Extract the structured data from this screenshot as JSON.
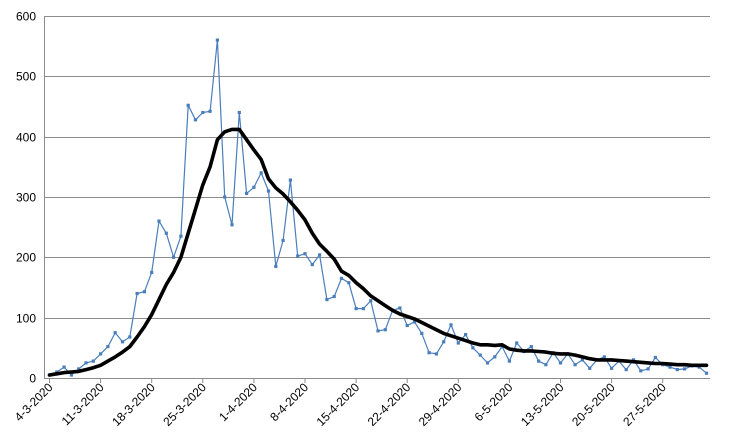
{
  "chart_data": {
    "type": "line",
    "title": "",
    "xlabel": "",
    "ylabel": "",
    "ylim": [
      0,
      600
    ],
    "yticks": [
      0,
      100,
      200,
      300,
      400,
      500,
      600
    ],
    "grid": true,
    "legend": "none",
    "x_tick_labels": [
      "4-3-2020",
      "11-3-2020",
      "18-3-2020",
      "25-3-2020",
      "1-4-2020",
      "8-4-2020",
      "15-4-2020",
      "22-4-2020",
      "29-4-2020",
      "6-5-2020",
      "13-5-2020",
      "20-5-2020",
      "27-5-2020"
    ],
    "colors": {
      "daily": "#4a7ebb",
      "average": "#000000",
      "grid": "#8c8c8c"
    },
    "series": [
      {
        "style": "thin blue line with point markers",
        "values": [
          5,
          10,
          18,
          5,
          15,
          25,
          28,
          40,
          52,
          75,
          60,
          68,
          140,
          143,
          175,
          260,
          240,
          200,
          235,
          452,
          428,
          440,
          442,
          560,
          300,
          254,
          440,
          306,
          316,
          340,
          310,
          185,
          228,
          328,
          202,
          206,
          188,
          204,
          130,
          135,
          165,
          158,
          115,
          115,
          128,
          78,
          80,
          112,
          116,
          87,
          93,
          74,
          42,
          40,
          60,
          88,
          58,
          72,
          50,
          38,
          25,
          35,
          52,
          28,
          58,
          44,
          52,
          28,
          22,
          42,
          25,
          40,
          22,
          30,
          16,
          30,
          35,
          16,
          28,
          14,
          30,
          12,
          15,
          34,
          22,
          18,
          14,
          15,
          20,
          18,
          8
        ]
      },
      {
        "style": "thick black smoothed line",
        "values": [
          5,
          7,
          9,
          10,
          11,
          14,
          17,
          21,
          28,
          35,
          43,
          52,
          68,
          85,
          105,
          130,
          155,
          175,
          200,
          240,
          280,
          320,
          350,
          395,
          408,
          412,
          412,
          395,
          378,
          362,
          330,
          315,
          305,
          292,
          278,
          262,
          240,
          222,
          210,
          197,
          177,
          170,
          158,
          148,
          136,
          128,
          120,
          112,
          106,
          102,
          98,
          92,
          86,
          80,
          74,
          70,
          66,
          62,
          58,
          55,
          55,
          54,
          55,
          48,
          46,
          45,
          45,
          44,
          43,
          41,
          40,
          40,
          38,
          35,
          32,
          30,
          30,
          30,
          29,
          28,
          27,
          26,
          25,
          24,
          24,
          23,
          22,
          22,
          21,
          21,
          21
        ]
      }
    ]
  }
}
